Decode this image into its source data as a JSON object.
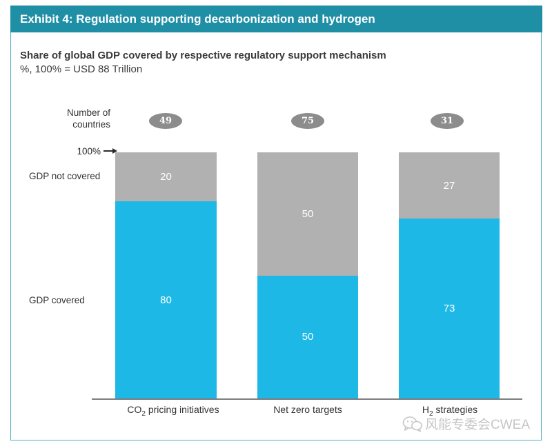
{
  "exhibit_header": {
    "title": "Exhibit 4: Regulation supporting decarbonization and hydrogen"
  },
  "chart": {
    "title": "Share of global GDP covered by respective regulatory support mechanism",
    "subtitle": "%, 100% = USD 88 Trillion",
    "countries_annotation": {
      "line1": "Number of",
      "line2": "countries"
    },
    "axis_marker": "100%",
    "side_labels": {
      "not_covered": "GDP not covered",
      "covered": "GDP covered"
    }
  },
  "chart_data": {
    "type": "bar",
    "stacked": true,
    "unit": "%",
    "total": "100% = USD 88 Trillion",
    "ylim": [
      0,
      100
    ],
    "categories_text": [
      "CO2 pricing initiatives",
      "Net zero targets",
      "H2 strategies"
    ],
    "categories": [
      {
        "pre": "CO",
        "sub": "2",
        "post": " pricing initiatives"
      },
      {
        "pre": "Net zero targets",
        "sub": "",
        "post": ""
      },
      {
        "pre": "H",
        "sub": "2",
        "post": " strategies"
      }
    ],
    "countries": [
      "49",
      "75",
      "31"
    ],
    "series": [
      {
        "name": "GDP covered",
        "color": "#1EB8E6",
        "values": [
          80,
          50,
          73
        ]
      },
      {
        "name": "GDP not covered",
        "color": "#B1B1B1",
        "values": [
          20,
          50,
          27
        ]
      }
    ],
    "legend_position": "left row labels"
  },
  "watermark": {
    "icon": "wechat-icon",
    "text": "风能专委会CWEA"
  },
  "colors": {
    "header_bg": "#1F8FA6",
    "frame_border": "#4FAEC2",
    "bar_covered": "#1EB8E6",
    "bar_not_covered": "#B1B1B1",
    "country_badge": "#8C8C8C",
    "axis_line": "#7D7D7D",
    "text_dark": "#3B3B3B",
    "value_text": "#FFFFFF",
    "watermark_text": "#C6C6C6"
  }
}
